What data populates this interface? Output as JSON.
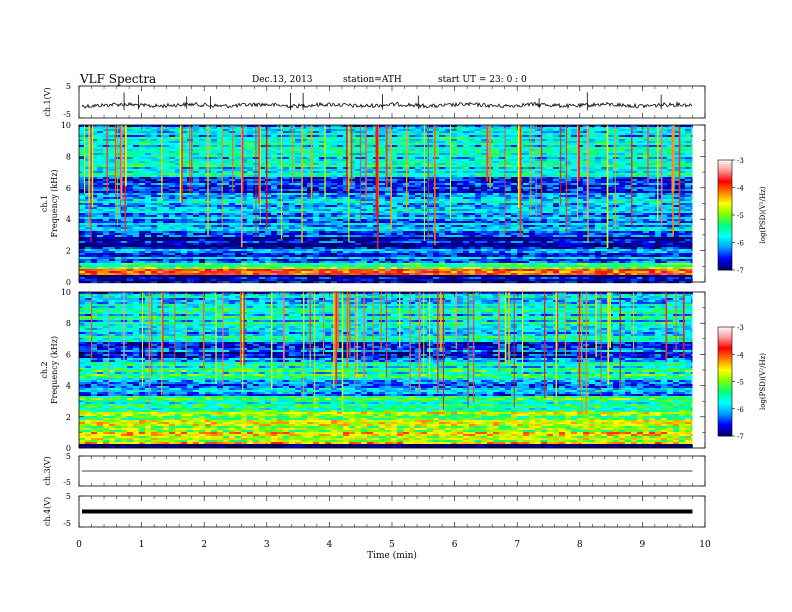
{
  "header": {
    "title": "VLF  Spectra",
    "date": "Dec.13, 2013",
    "station": "station=ATH",
    "start": "start  UT  =    23: 0   : 0"
  },
  "chart_data": [
    {
      "type": "line",
      "name": "ch1-waveform",
      "ylabel": "ch.1(V)",
      "ylim": [
        -5,
        5
      ],
      "yticks": [
        "5",
        "-5"
      ],
      "xlim": [
        0,
        10
      ],
      "approx_level": -1.0,
      "x_end": 9.8,
      "spike_times": [
        0.72,
        0.95,
        1.72,
        2.1,
        3.38,
        3.58,
        4.85,
        5.42,
        7.35,
        8.12,
        9.3
      ]
    },
    {
      "type": "heatmap",
      "name": "ch1-spectrogram",
      "ylabel": "ch.1  Frequency  (kHz)",
      "ylim": [
        0,
        10
      ],
      "yticks": [
        "0",
        "2",
        "4",
        "6",
        "8",
        "10"
      ],
      "xlim": [
        0,
        10
      ],
      "x_end": 9.8,
      "colorbar": {
        "label": "log(PSD)(V²/Hz)",
        "range": [
          -7,
          -3
        ],
        "ticks": [
          "-3",
          "-4",
          "-5",
          "-6",
          "-7"
        ]
      },
      "bands": [
        {
          "from": 0,
          "to": 0.5,
          "level": -6.8
        },
        {
          "from": 0.5,
          "to": 0.9,
          "level": -3.8
        },
        {
          "from": 0.9,
          "to": 1.3,
          "level": -5.2
        },
        {
          "from": 1.3,
          "to": 2.2,
          "level": -6.3
        },
        {
          "from": 2.2,
          "to": 3.2,
          "level": -6.7
        },
        {
          "from": 3.2,
          "to": 4.6,
          "level": -6.2
        },
        {
          "from": 4.6,
          "to": 5.6,
          "level": -5.9
        },
        {
          "from": 5.6,
          "to": 6.8,
          "level": -6.4
        },
        {
          "from": 6.8,
          "to": 10,
          "level": -5.8
        }
      ]
    },
    {
      "type": "heatmap",
      "name": "ch2-spectrogram",
      "ylabel": "ch.2  Frequency  (kHz)",
      "ylim": [
        0,
        10
      ],
      "yticks": [
        "0",
        "2",
        "4",
        "6",
        "8",
        "10"
      ],
      "xlim": [
        0,
        10
      ],
      "x_end": 9.8,
      "colorbar": {
        "label": "log(PSD)(V²/Hz)",
        "range": [
          -7,
          -3
        ],
        "ticks": [
          "-3",
          "-4",
          "-5",
          "-6",
          "-7"
        ]
      },
      "bands": [
        {
          "from": 0,
          "to": 0.3,
          "level": -6.9
        },
        {
          "from": 0.3,
          "to": 1.2,
          "level": -4.7
        },
        {
          "from": 1.2,
          "to": 2.4,
          "level": -5.0
        },
        {
          "from": 2.4,
          "to": 3.4,
          "level": -5.5
        },
        {
          "from": 3.4,
          "to": 4.6,
          "level": -6.1
        },
        {
          "from": 4.6,
          "to": 5.6,
          "level": -5.6
        },
        {
          "from": 5.6,
          "to": 6.8,
          "level": -6.5
        },
        {
          "from": 6.8,
          "to": 10,
          "level": -5.8
        }
      ]
    },
    {
      "type": "line",
      "name": "ch3-waveform",
      "ylabel": "ch.3(V)",
      "ylim": [
        -5,
        5
      ],
      "yticks": [
        "5",
        "-5"
      ],
      "xlim": [
        0,
        10
      ],
      "approx_level": 0,
      "x_end": 9.8
    },
    {
      "type": "line",
      "name": "ch4-waveform",
      "ylabel": "ch.4(V)",
      "ylim": [
        -5,
        5
      ],
      "yticks": [
        "5",
        "-5"
      ],
      "xlim": [
        0,
        10
      ],
      "approx_level": 0,
      "x_end": 9.8
    }
  ],
  "xaxis": {
    "label": "Time  (min)",
    "ticks": [
      "0",
      "1",
      "2",
      "3",
      "4",
      "5",
      "6",
      "7",
      "8",
      "9",
      "10"
    ]
  },
  "colors": {
    "axis": "#000000",
    "colormap": [
      "#000066",
      "#0000ff",
      "#00a0ff",
      "#00ffff",
      "#00ff80",
      "#80ff00",
      "#ffff00",
      "#ff8000",
      "#ff0000",
      "#ff9999",
      "#ffffff"
    ]
  }
}
